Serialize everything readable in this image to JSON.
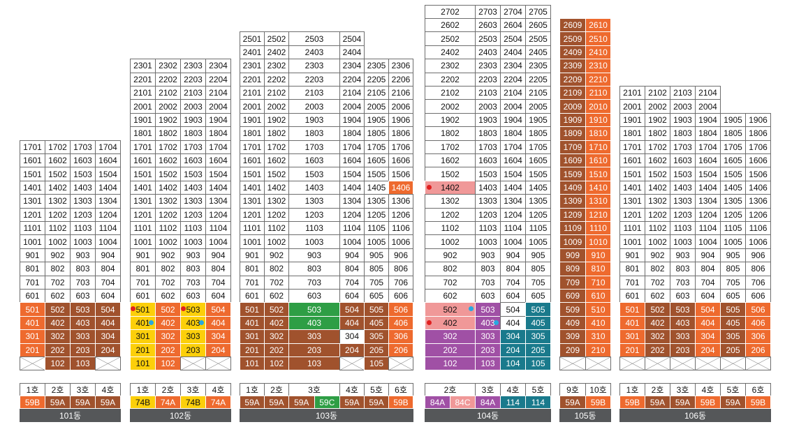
{
  "colors": {
    "brown": "#a0522d",
    "orange": "#ee6a2e",
    "yellow": "#fccf0a",
    "green": "#2e9e45",
    "purple": "#a050a5",
    "pink": "#f09898",
    "teal": "#1a7a8c",
    "white": "#ffffff",
    "dot_red": "#e02020",
    "dot_blue": "#28a8e0",
    "label_bg": "#555759"
  },
  "buildings": [
    {
      "label": "101동",
      "columns": [
        {
          "type": "59B",
          "ho": "1호"
        },
        {
          "type": "59A",
          "ho": "2호"
        },
        {
          "type": "59A",
          "ho": "3호"
        },
        {
          "type": "59A",
          "ho": "4호"
        }
      ],
      "top_floor": 17,
      "bottom_row": [
        "X",
        "102",
        "103",
        "X"
      ],
      "floor_colors": {
        "2": "orange",
        "3": "orange",
        "4": "orange",
        "5": "orange"
      },
      "type_colors": [
        "orange",
        "brown",
        "brown",
        "brown"
      ],
      "exceptions": {}
    },
    {
      "label": "102동",
      "columns": [
        {
          "type": "74B",
          "ho": "1호"
        },
        {
          "type": "74A",
          "ho": "2호"
        },
        {
          "type": "74B",
          "ho": "3호"
        },
        {
          "type": "74A",
          "ho": "4호"
        }
      ],
      "top_floor": 23,
      "bottom_row": [
        "101",
        "102",
        "X",
        "X"
      ],
      "floor_colors": {
        "1": "yellow",
        "2": "yellow",
        "3": "yellow",
        "4": "yellow",
        "5": "yellow"
      },
      "type_colors": [
        "yellow",
        "orange",
        "yellow",
        "orange"
      ],
      "col_colors_low": [
        "yellow",
        "orange",
        "yellow",
        "orange"
      ],
      "exceptions": {},
      "dots": [
        {
          "unit": "501",
          "color": "dot_red",
          "side": "left"
        },
        {
          "unit": "401",
          "color": "dot_blue",
          "side": "right"
        },
        {
          "unit": "503",
          "color": "dot_red",
          "side": "left"
        },
        {
          "unit": "403",
          "color": "dot_blue",
          "side": "right"
        }
      ]
    },
    {
      "label": "103동",
      "columns": [
        {
          "type": "59A",
          "ho": "1호"
        },
        {
          "type": "59A",
          "ho": "2호"
        },
        {
          "type": "59A|59C",
          "ho": "3호"
        },
        {
          "type": "59A",
          "ho": "4호"
        },
        {
          "type": "59A",
          "ho": "5호"
        },
        {
          "type": "59B",
          "ho": "6호"
        }
      ],
      "top_floor": 25,
      "bottom_row": [
        "101",
        "102",
        "103",
        "X",
        "105",
        "X"
      ],
      "exceptions": {}
    },
    {
      "label": "104동",
      "columns": [
        {
          "type": "84A|84C",
          "ho": "2호"
        },
        {
          "type": "84A",
          "ho": "3호"
        },
        {
          "type": "114",
          "ho": "4호"
        },
        {
          "type": "114",
          "ho": "5호"
        }
      ],
      "top_floor": 27,
      "bottom_row": [
        "102",
        "103",
        "104",
        "105"
      ],
      "exceptions": {}
    },
    {
      "label": "105동",
      "columns": [
        {
          "type": "59A",
          "ho": "9호"
        },
        {
          "type": "59B",
          "ho": "10호"
        }
      ],
      "top_floor": 26,
      "bottom_row": [
        "X",
        "X"
      ],
      "exceptions": {}
    },
    {
      "label": "106동",
      "columns": [
        {
          "type": "59B",
          "ho": "1호"
        },
        {
          "type": "59A",
          "ho": "2호"
        },
        {
          "type": "59A",
          "ho": "3호"
        },
        {
          "type": "59B",
          "ho": "4호"
        },
        {
          "type": "59A",
          "ho": "5호"
        },
        {
          "type": "59B",
          "ho": "6호"
        }
      ],
      "top_floor": 21,
      "bottom_row": [
        "X",
        "X",
        "X",
        "X",
        "X",
        "X"
      ],
      "exceptions": {}
    }
  ]
}
